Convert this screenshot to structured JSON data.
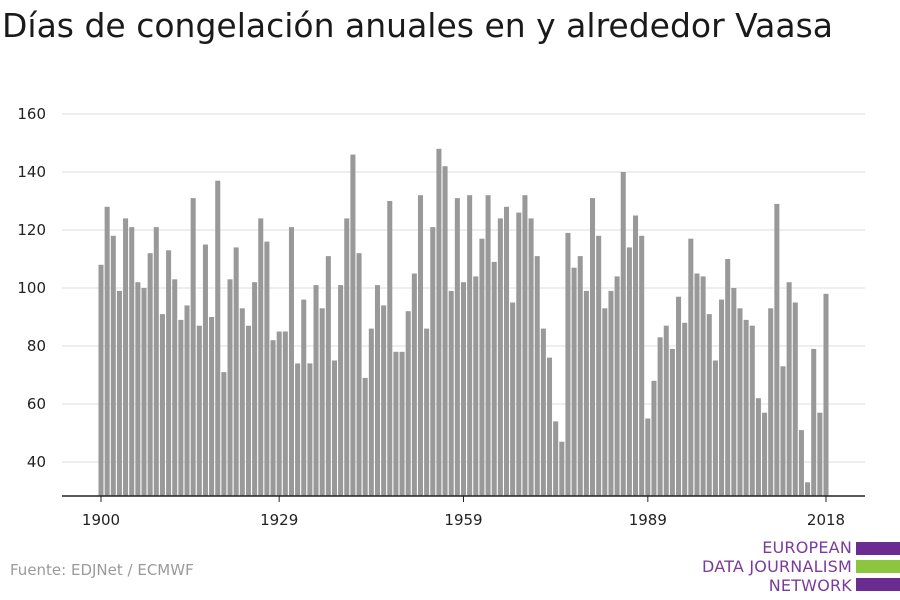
{
  "title": "Días de congelación anuales en y alrededor Vaasa",
  "source": "Fuente: EDJNet / ECMWF",
  "brand": {
    "lines": [
      "EUROPEAN",
      "DATA JOURNALISM",
      "NETWORK"
    ],
    "colors": {
      "purple": "#6b2c91",
      "green": "#8cc63f",
      "text": "#7b3b9b"
    }
  },
  "chart_data": {
    "type": "bar",
    "title": "Días de congelación anuales en y alrededor Vaasa",
    "xlabel": "",
    "ylabel": "",
    "ylim": [
      28,
      163
    ],
    "yticks": [
      40,
      60,
      80,
      100,
      120,
      140,
      160
    ],
    "xticks": [
      "1900",
      "1929",
      "1959",
      "1989",
      "2018"
    ],
    "x": [
      1900,
      1901,
      1902,
      1903,
      1904,
      1905,
      1906,
      1907,
      1908,
      1909,
      1910,
      1911,
      1912,
      1913,
      1914,
      1915,
      1916,
      1917,
      1918,
      1919,
      1920,
      1921,
      1922,
      1923,
      1924,
      1925,
      1926,
      1927,
      1928,
      1929,
      1930,
      1931,
      1932,
      1933,
      1934,
      1935,
      1936,
      1937,
      1938,
      1939,
      1940,
      1941,
      1942,
      1943,
      1944,
      1945,
      1946,
      1947,
      1948,
      1949,
      1950,
      1951,
      1952,
      1953,
      1954,
      1955,
      1956,
      1957,
      1958,
      1959,
      1960,
      1961,
      1962,
      1963,
      1964,
      1965,
      1966,
      1967,
      1968,
      1969,
      1970,
      1971,
      1972,
      1973,
      1974,
      1975,
      1976,
      1977,
      1978,
      1979,
      1980,
      1981,
      1982,
      1983,
      1984,
      1985,
      1986,
      1987,
      1988,
      1989,
      1990,
      1991,
      1992,
      1993,
      1994,
      1995,
      1996,
      1997,
      1998,
      1999,
      2000,
      2001,
      2002,
      2003,
      2004,
      2005,
      2006,
      2007,
      2008,
      2009,
      2010,
      2011,
      2012,
      2013,
      2014,
      2015,
      2016,
      2017,
      2018
    ],
    "values": [
      108,
      128,
      118,
      99,
      124,
      121,
      102,
      100,
      112,
      121,
      91,
      113,
      103,
      89,
      94,
      131,
      87,
      115,
      90,
      137,
      71,
      103,
      114,
      93,
      87,
      102,
      124,
      116,
      82,
      85,
      85,
      121,
      74,
      96,
      74,
      101,
      93,
      111,
      75,
      101,
      124,
      146,
      112,
      69,
      86,
      101,
      94,
      130,
      78,
      78,
      92,
      105,
      132,
      86,
      121,
      148,
      142,
      99,
      131,
      102,
      132,
      104,
      117,
      132,
      109,
      124,
      128,
      95,
      126,
      132,
      124,
      111,
      86,
      76,
      54,
      47,
      119,
      107,
      111,
      99,
      131,
      118,
      93,
      99,
      104,
      140,
      114,
      125,
      118,
      55,
      68,
      83,
      87,
      79,
      97,
      88,
      117,
      105,
      104,
      91,
      75,
      96,
      110,
      100,
      93,
      89,
      87,
      62,
      57,
      93,
      129,
      73,
      102,
      95,
      51,
      33,
      79,
      57,
      98
    ],
    "bar_color": "#999999",
    "grid": true,
    "legend": "none"
  }
}
